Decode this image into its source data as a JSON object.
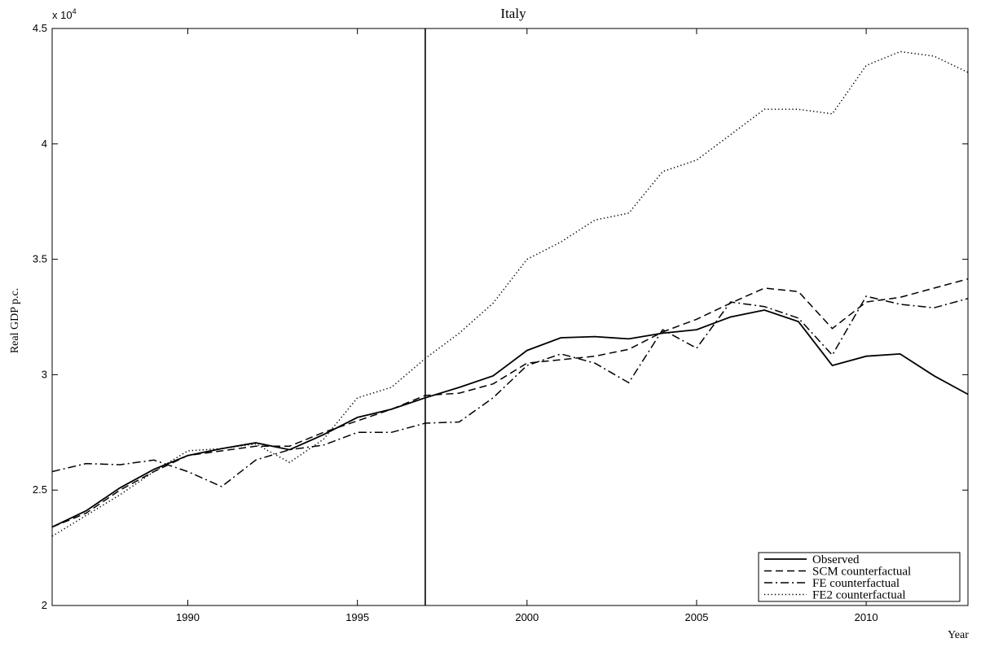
{
  "chart_data": {
    "type": "line",
    "title": "Italy",
    "xlabel": "Year",
    "ylabel": "Real GDP p.c.",
    "y_multiplier": "x 10",
    "y_multiplier_exponent": "4",
    "xlim": [
      1986,
      2013
    ],
    "ylim": [
      20000,
      45000
    ],
    "x_ticks": [
      1990,
      1995,
      2000,
      2005,
      2010
    ],
    "y_ticks": [
      20000,
      25000,
      30000,
      35000,
      40000,
      45000
    ],
    "y_tick_labels": [
      "2",
      "2.5",
      "3",
      "3.5",
      "4",
      "4.5"
    ],
    "vertical_line_x": 1997,
    "legend_position": "bottom-right",
    "grid": false,
    "x": [
      1986,
      1987,
      1988,
      1989,
      1990,
      1991,
      1992,
      1993,
      1994,
      1995,
      1996,
      1997,
      1998,
      1999,
      2000,
      2001,
      2002,
      2003,
      2004,
      2005,
      2006,
      2007,
      2008,
      2009,
      2010,
      2011,
      2012,
      2013
    ],
    "series": [
      {
        "name": "Observed",
        "style": "solid",
        "values": [
          23400,
          24100,
          25100,
          25900,
          26500,
          26800,
          27050,
          26750,
          27400,
          28150,
          28500,
          29000,
          29450,
          29950,
          31050,
          31600,
          31650,
          31550,
          31800,
          31950,
          32500,
          32800,
          32300,
          30400,
          30800,
          30900,
          29950,
          29150
        ]
      },
      {
        "name": "SCM counterfactual",
        "style": "dashed",
        "values": [
          23400,
          24000,
          25000,
          25800,
          26500,
          26700,
          26900,
          26900,
          27500,
          28000,
          28500,
          29100,
          29200,
          29600,
          30500,
          30650,
          30800,
          31100,
          31850,
          32400,
          33100,
          33750,
          33600,
          32000,
          33150,
          33350,
          33750,
          34150
        ]
      },
      {
        "name": "FE counterfactual",
        "style": "dashdot",
        "values": [
          25800,
          26150,
          26100,
          26300,
          25800,
          25150,
          26300,
          26750,
          26950,
          27500,
          27500,
          27900,
          27950,
          29000,
          30400,
          30900,
          30500,
          29650,
          31950,
          31150,
          33150,
          32950,
          32450,
          30850,
          33400,
          33050,
          32900,
          33300
        ]
      },
      {
        "name": "FE2 counterfactual",
        "style": "dotted",
        "values": [
          23000,
          23900,
          24800,
          25800,
          26700,
          26800,
          27000,
          26200,
          27200,
          29000,
          29450,
          30700,
          31800,
          33100,
          35000,
          35750,
          36700,
          37000,
          38800,
          39300,
          40400,
          41500,
          41500,
          41300,
          43400,
          44000,
          43800,
          43100
        ]
      }
    ]
  }
}
